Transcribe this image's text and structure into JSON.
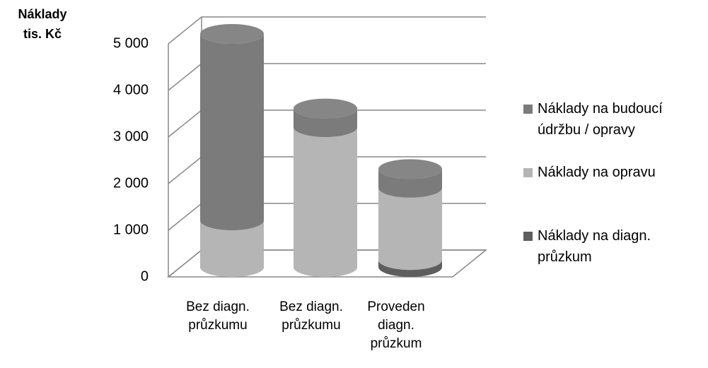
{
  "chart_data": {
    "type": "bar3d-cylinder-stacked",
    "y_label": "Náklady tis. Kč",
    "categories": [
      "Bez diagn. průzkumu",
      "Bez diagn. průzkumu",
      "Proveden diagn. průzkum"
    ],
    "series": [
      {
        "name": "Náklady na diagn. průzkum",
        "color": "#5e5e5e",
        "values": [
          0,
          0,
          150
        ]
      },
      {
        "name": "Náklady na opravu",
        "color": "#b5b5b5",
        "values": [
          1000,
          3000,
          1550
        ]
      },
      {
        "name": "Náklady na budoucí údržbu / opravy",
        "color": "#7b7b7b",
        "values": [
          4000,
          400,
          400
        ]
      }
    ],
    "ylim": [
      0,
      5000
    ],
    "yticks": [
      0,
      {
        "value": 1000,
        "label": "1 000"
      },
      {
        "value": 2000,
        "label": "2 000"
      },
      {
        "value": 3000,
        "label": "3 000"
      },
      {
        "value": 4000,
        "label": "4 000"
      },
      {
        "value": 5000,
        "label": "5 000"
      }
    ],
    "grid": true
  }
}
